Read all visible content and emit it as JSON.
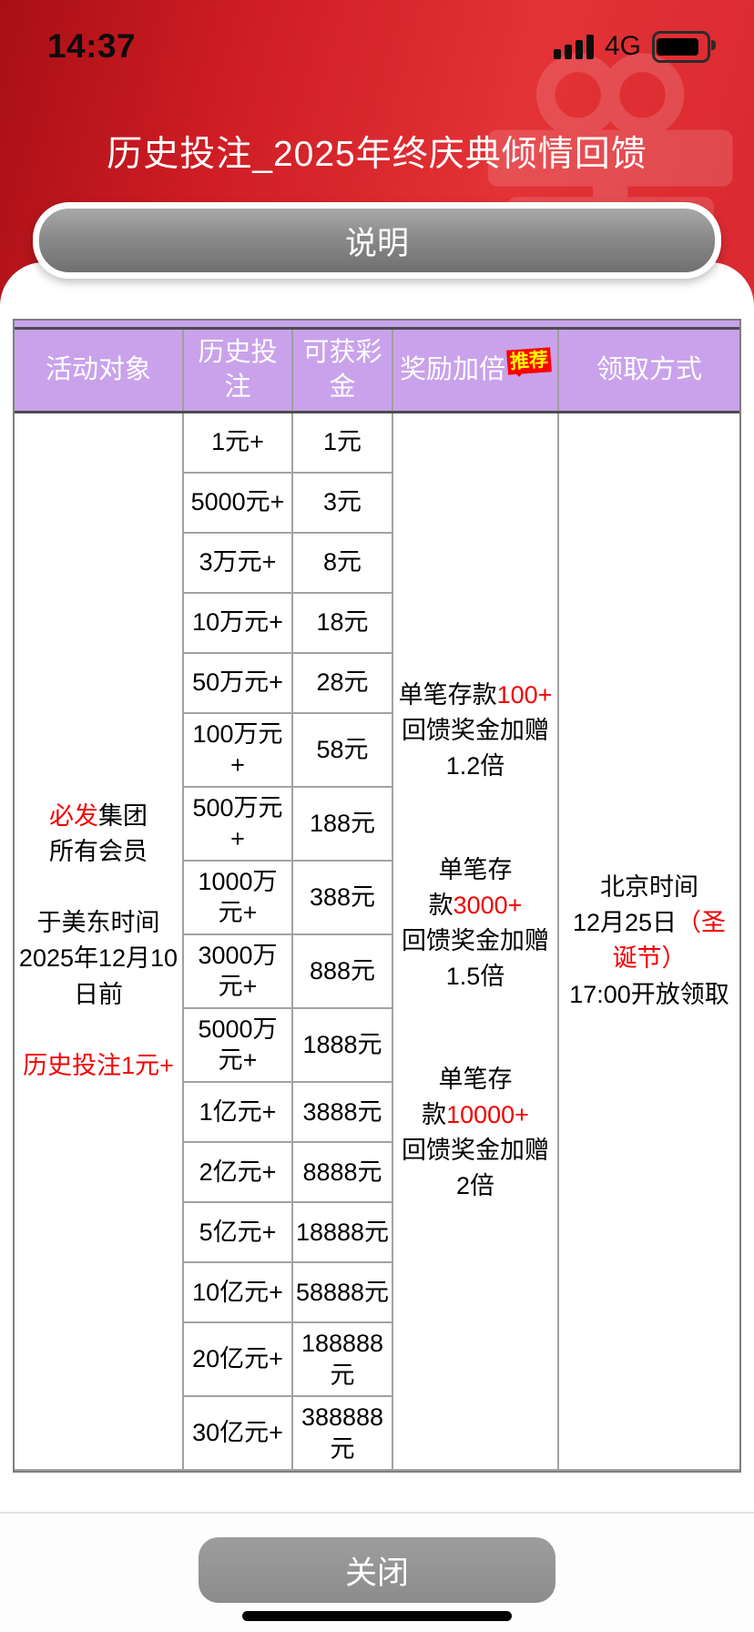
{
  "status_bar": {
    "time": "14:37",
    "network": "4G",
    "signal_icon": "cellular-signal-4-bars",
    "battery_icon": "battery-full"
  },
  "header": {
    "title": "历史投注_2025年终庆典倾情回馈",
    "watermark_icon": "gift-icon"
  },
  "info_button": {
    "label": "说明"
  },
  "close_button": {
    "label": "关闭"
  },
  "colors": {
    "hero_red_dark": "#a80f16",
    "hero_red_bright": "#e33336",
    "table_header_purple": "#c9a2eb",
    "badge_bg": "#fe0000",
    "badge_text": "#ffff00",
    "highlight_red": "#f20000",
    "button_gray": "#8a8a8a"
  },
  "table": {
    "headers": {
      "col1": "活动对象",
      "col2": "历史投注",
      "col3": "可获彩金",
      "col4": "奖励加倍",
      "col4_badge": "推荐",
      "col5": "领取方式"
    },
    "member_cell_lines": [
      [
        {
          "t": "必发",
          "red": true
        },
        {
          "t": "集团"
        }
      ],
      [
        {
          "t": "所有会员"
        }
      ],
      [
        {
          "t": ""
        }
      ],
      [
        {
          "t": "于美东时间"
        }
      ],
      [
        {
          "t": "2025年12月10"
        }
      ],
      [
        {
          "t": "日前"
        }
      ],
      [
        {
          "t": ""
        }
      ],
      [
        {
          "t": "历史投注1元+",
          "red": true
        }
      ]
    ],
    "rows": [
      {
        "bet": "1元+",
        "bonus": "1元"
      },
      {
        "bet": "5000元+",
        "bonus": "3元"
      },
      {
        "bet": "3万元+",
        "bonus": "8元"
      },
      {
        "bet": "10万元+",
        "bonus": "18元"
      },
      {
        "bet": "50万元+",
        "bonus": "28元"
      },
      {
        "bet": "100万元+",
        "bonus": "58元"
      },
      {
        "bet": "500万元+",
        "bonus": "188元"
      },
      {
        "bet": "1000万元+",
        "bonus": "388元"
      },
      {
        "bet": "3000万元+",
        "bonus": "888元"
      },
      {
        "bet": "5000万元+",
        "bonus": "1888元"
      },
      {
        "bet": "1亿元+",
        "bonus": "3888元"
      },
      {
        "bet": "2亿元+",
        "bonus": "8888元"
      },
      {
        "bet": "5亿元+",
        "bonus": "18888元"
      },
      {
        "bet": "10亿元+",
        "bonus": "58888元"
      },
      {
        "bet": "20亿元+",
        "bonus": "188888元"
      },
      {
        "bet": "30亿元+",
        "bonus": "388888元"
      }
    ],
    "bonus_blocks": [
      {
        "lines": [
          [
            {
              "t": "单笔存款"
            },
            {
              "t": "100+",
              "red": true
            }
          ],
          [
            {
              "t": "回馈奖金加赠"
            }
          ],
          [
            {
              "t": "1.2倍"
            }
          ]
        ]
      },
      {
        "lines": [
          [
            {
              "t": "单笔存"
            }
          ],
          [
            {
              "t": "款"
            },
            {
              "t": "3000+",
              "red": true
            }
          ],
          [
            {
              "t": "回馈奖金加赠"
            }
          ],
          [
            {
              "t": "1.5倍"
            }
          ]
        ]
      },
      {
        "lines": [
          [
            {
              "t": "单笔存"
            }
          ],
          [
            {
              "t": "款"
            },
            {
              "t": "10000+",
              "red": true
            }
          ],
          [
            {
              "t": "回馈奖金加赠"
            }
          ],
          [
            {
              "t": "2倍"
            }
          ]
        ]
      }
    ],
    "claim_cell_lines": [
      [
        {
          "t": "北京时间"
        }
      ],
      [
        {
          "t": "12月25日"
        },
        {
          "t": "（圣",
          "red": true
        }
      ],
      [
        {
          "t": "诞节）",
          "red": true
        }
      ],
      [
        {
          "t": "17:00开放领取"
        }
      ]
    ]
  }
}
